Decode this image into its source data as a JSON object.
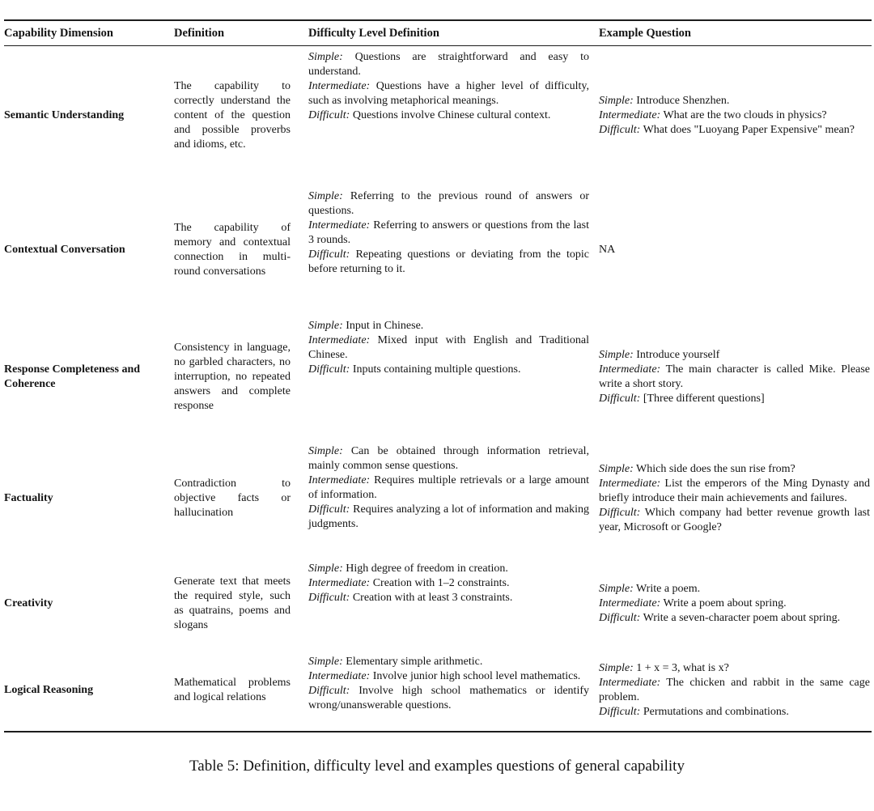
{
  "table": {
    "columns": [
      "Capability Dimension",
      "Definition",
      "Difficulty Level Definition",
      "Example Question"
    ],
    "rows": [
      {
        "dimension": "Semantic Understanding",
        "definition": "The capability to correctly understand the content of the question and possible proverbs and idioms, etc.",
        "difficulty": [
          {
            "level": "Simple:",
            "text": "Questions are straightforward and easy to understand."
          },
          {
            "level": "Intermediate:",
            "text": "Questions have a higher level of difficulty, such as involving metaphorical meanings."
          },
          {
            "level": "Difficult:",
            "text": "Questions involve Chinese cultural context."
          }
        ],
        "examples": [
          {
            "level": "Simple:",
            "text": "Introduce Shenzhen."
          },
          {
            "level": "Intermediate:",
            "text": "What are the two clouds in physics?"
          },
          {
            "level": "Difficult:",
            "text": "What does \"Luoyang Paper Expensive\" mean?"
          }
        ]
      },
      {
        "dimension": "Contextual Conversation",
        "definition": "The capability of memory and contextual connection in multi-round conversations",
        "difficulty": [
          {
            "level": "Simple:",
            "text": "Referring to the previous round of answers or questions."
          },
          {
            "level": "Intermediate:",
            "text": "Referring to answers or questions from the last 3 rounds."
          },
          {
            "level": "Difficult:",
            "text": "Repeating questions or deviating from the topic before returning to it."
          }
        ],
        "examples": "NA"
      },
      {
        "dimension": "Response Completeness and Coherence",
        "definition": "Consistency in language, no garbled characters, no interruption, no repeated answers and complete response",
        "difficulty": [
          {
            "level": "Simple:",
            "text": "Input in Chinese."
          },
          {
            "level": "Intermediate:",
            "text": "Mixed input with English and Traditional Chinese."
          },
          {
            "level": "Difficult:",
            "text": "Inputs containing multiple questions."
          }
        ],
        "examples": [
          {
            "level": "Simple:",
            "text": "Introduce yourself"
          },
          {
            "level": "Intermediate:",
            "text": "The main character is called Mike. Please write a short story."
          },
          {
            "level": "Difficult:",
            "text": "[Three different questions]"
          }
        ]
      },
      {
        "dimension": "Factuality",
        "definition": "Contradiction to objective facts or hallucination",
        "difficulty": [
          {
            "level": "Simple:",
            "text": "Can be obtained through information retrieval, mainly common sense questions."
          },
          {
            "level": "Intermediate:",
            "text": "Requires multiple retrievals or a large amount of information."
          },
          {
            "level": "Difficult:",
            "text": "Requires analyzing a lot of information and making judgments."
          }
        ],
        "examples": [
          {
            "level": "Simple:",
            "text": "Which side does the sun rise from?"
          },
          {
            "level": "Intermediate:",
            "text": "List the emperors of the Ming Dynasty and briefly introduce their main achievements and failures."
          },
          {
            "level": "Difficult:",
            "text": "Which company had better revenue growth last year, Microsoft or Google?"
          }
        ]
      },
      {
        "dimension": "Creativity",
        "definition": "Generate text that meets the required style, such as quatrains, poems and slogans",
        "difficulty": [
          {
            "level": "Simple:",
            "text": "High degree of freedom in creation."
          },
          {
            "level": "Intermediate:",
            "text": "Creation with 1–2 constraints."
          },
          {
            "level": "Difficult:",
            "text": "Creation with at least 3 constraints."
          }
        ],
        "examples": [
          {
            "level": "Simple:",
            "text": "Write a poem."
          },
          {
            "level": "Intermediate:",
            "text": "Write a poem about spring."
          },
          {
            "level": "Difficult:",
            "text": "Write a seven-character poem about spring."
          }
        ]
      },
      {
        "dimension": "Logical Reasoning",
        "definition": "Mathematical problems and logical relations",
        "difficulty": [
          {
            "level": "Simple:",
            "text": "Elementary simple arithmetic."
          },
          {
            "level": "Intermediate:",
            "text": "Involve junior high school level mathematics."
          },
          {
            "level": "Difficult:",
            "text": "Involve high school mathematics or identify wrong/unanswerable questions."
          }
        ],
        "examples": [
          {
            "level": "Simple:",
            "text": "1 + x = 3, what is x?"
          },
          {
            "level": "Intermediate:",
            "text": "The chicken and rabbit in the same cage problem."
          },
          {
            "level": "Difficult:",
            "text": "Permutations and combinations."
          }
        ]
      }
    ],
    "caption": "Table 5: Definition, difficulty level and examples questions of general capability"
  }
}
